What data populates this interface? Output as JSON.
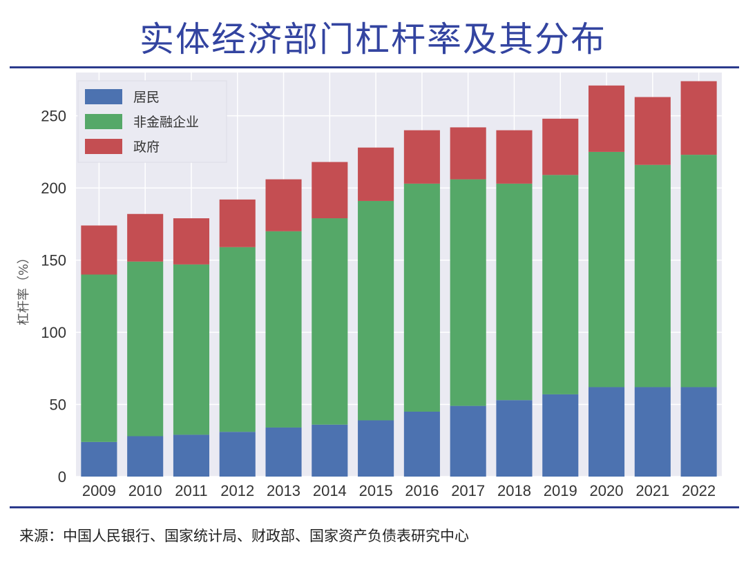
{
  "header": {
    "title": "实体经济部门杠杆率及其分布"
  },
  "footer": {
    "source": "来源：中国人民银行、国家统计局、财政部、国家资产负债表研究中心"
  },
  "chart_data": {
    "type": "bar",
    "stacked": true,
    "title": "",
    "xlabel": "",
    "ylabel": "杠杆率（%）",
    "ylim": [
      0,
      280
    ],
    "yticks": [
      0,
      50,
      100,
      150,
      200,
      250
    ],
    "grid": true,
    "legend_position": "top-left",
    "categories": [
      "2009",
      "2010",
      "2011",
      "2012",
      "2013",
      "2014",
      "2015",
      "2016",
      "2017",
      "2018",
      "2019",
      "2020",
      "2021",
      "2022"
    ],
    "series": [
      {
        "name": "居民",
        "color": "#4c72b0",
        "values": [
          24,
          28,
          29,
          31,
          34,
          36,
          39,
          45,
          49,
          53,
          57,
          62,
          62,
          62
        ]
      },
      {
        "name": "非金融企业",
        "color": "#55a868",
        "values": [
          116,
          121,
          118,
          128,
          136,
          143,
          152,
          158,
          157,
          150,
          152,
          163,
          154,
          161
        ]
      },
      {
        "name": "政府",
        "color": "#c44e52",
        "values": [
          34,
          33,
          32,
          33,
          36,
          39,
          37,
          37,
          36,
          37,
          39,
          46,
          47,
          51
        ]
      }
    ],
    "background_color": "#eaeaf2",
    "grid_color": "#ffffff"
  }
}
